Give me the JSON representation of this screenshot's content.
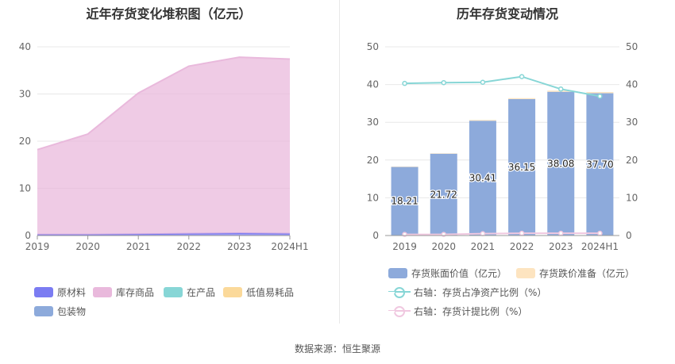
{
  "left_chart": {
    "title": "近年存货变化堆积图（亿元）"
  },
  "right_chart": {
    "title": "历年存货变动情况"
  },
  "legend_left": [
    {
      "label": "原材料",
      "color": "#7b7cf2"
    },
    {
      "label": "库存商品",
      "color": "#e9b9dc"
    },
    {
      "label": "在产品",
      "color": "#87d6d6"
    },
    {
      "label": "低值易耗品",
      "color": "#fbd99a"
    },
    {
      "label": "包装物",
      "color": "#8daadb"
    }
  ],
  "legend_right": [
    {
      "label": "存货账面价值（亿元）",
      "color": "#8daadb",
      "kind": "box"
    },
    {
      "label": "存货跌价准备（亿元）",
      "color": "#fde4c0",
      "kind": "box"
    },
    {
      "label": "右轴：存货占净资产比例（%）",
      "color": "#87d6d6",
      "kind": "ring"
    },
    {
      "label": "右轴：存货计提比例（%）",
      "color": "#f0c8e0",
      "kind": "ring"
    }
  ],
  "source": "数据来源：恒生聚源",
  "chart_data": [
    {
      "type": "area",
      "stacked": true,
      "title": "近年存货变化堆积图（亿元）",
      "categories": [
        "2019",
        "2020",
        "2021",
        "2022",
        "2023",
        "2024H1"
      ],
      "ylim": [
        0,
        40
      ],
      "yticks": [
        0,
        10,
        20,
        30,
        40
      ],
      "grid": true,
      "legend_position": "bottom",
      "series": [
        {
          "name": "原材料",
          "values": [
            0.2,
            0.2,
            0.3,
            0.4,
            0.5,
            0.4
          ],
          "color": "#7b7cf2"
        },
        {
          "name": "库存商品",
          "values": [
            18.0,
            21.3,
            29.9,
            35.5,
            37.3,
            37.0
          ],
          "color": "#e9b9dc"
        },
        {
          "name": "在产品",
          "values": [
            0,
            0,
            0,
            0,
            0,
            0
          ],
          "color": "#87d6d6"
        },
        {
          "name": "低值易耗品",
          "values": [
            0,
            0,
            0,
            0,
            0,
            0
          ],
          "color": "#fbd99a"
        },
        {
          "name": "包装物",
          "values": [
            0,
            0,
            0,
            0,
            0,
            0
          ],
          "color": "#8daadb"
        }
      ]
    },
    {
      "type": "bar",
      "stacked": true,
      "title": "历年存货变动情况",
      "categories": [
        "2019",
        "2020",
        "2021",
        "2022",
        "2023",
        "2024H1"
      ],
      "ylim": [
        0,
        50
      ],
      "yticks": [
        0,
        10,
        20,
        30,
        40,
        50
      ],
      "y2lim": [
        0,
        50
      ],
      "y2ticks": [
        0,
        10,
        20,
        30,
        40,
        50
      ],
      "grid": true,
      "legend_position": "bottom",
      "series": [
        {
          "name": "存货账面价值（亿元）",
          "type": "bar",
          "values": [
            18.21,
            21.72,
            30.41,
            36.15,
            38.08,
            37.7
          ],
          "labels": [
            "18.21",
            "21.72",
            "30.41",
            "36.15",
            "38.08",
            "37.70"
          ],
          "color": "#8daadb"
        },
        {
          "name": "存货跌价准备（亿元）",
          "type": "bar",
          "values": [
            0.05,
            0.05,
            0.2,
            0.25,
            0.3,
            0.3
          ],
          "color": "#fde4c0"
        },
        {
          "name": "右轴：存货占净资产比例（%）",
          "type": "line",
          "axis": "right",
          "values": [
            40.3,
            40.5,
            40.6,
            42.1,
            38.8,
            36.9
          ],
          "color": "#87d6d6"
        },
        {
          "name": "右轴：存货计提比例（%）",
          "type": "line",
          "axis": "right",
          "values": [
            0.3,
            0.3,
            0.5,
            0.6,
            0.6,
            0.6
          ],
          "color": "#f0c8e0"
        }
      ]
    }
  ]
}
